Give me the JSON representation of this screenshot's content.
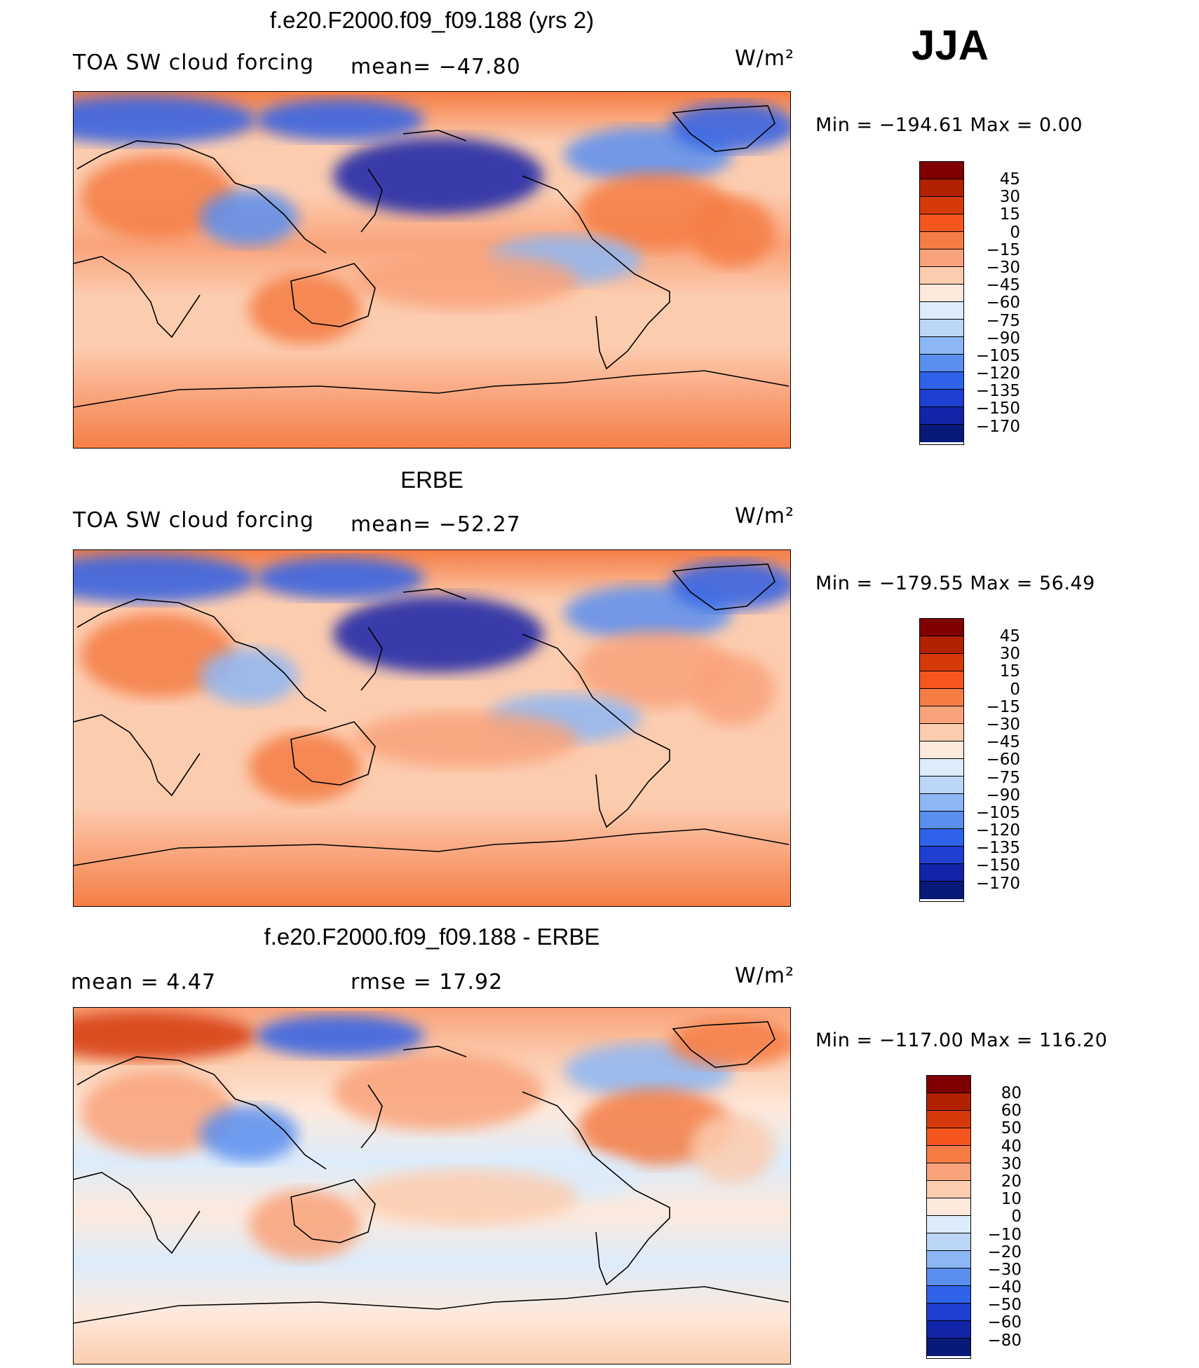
{
  "season": "JJA",
  "panels": [
    {
      "id": "model",
      "title": "f.e20.F2000.f09_f09.188 (yrs 2)",
      "left_label": "TOA SW cloud forcing",
      "mid_label": "mean= −47.80",
      "units": "W/m²",
      "min_max": "Min  =  −194.61  Max  =     0.00",
      "colorbar": {
        "labels": [
          "45",
          "30",
          "15",
          "0",
          "−15",
          "−30",
          "−45",
          "−60",
          "−75",
          "−90",
          "−105",
          "−120",
          "−135",
          "−150",
          "−170"
        ],
        "colors": [
          "#7f0000",
          "#b22200",
          "#d63a0a",
          "#f4561e",
          "#f57d45",
          "#f9a37a",
          "#fcccaf",
          "#fde9dc",
          "#dcecfb",
          "#bcd6f8",
          "#8db7f4",
          "#5a8ff0",
          "#2e62e8",
          "#1f3fd0",
          "#1224a8",
          "#081a78"
        ]
      },
      "map": {
        "base_gradient": [
          "#f57d45",
          "#fcccaf",
          "#fcccaf",
          "#f9a37a",
          "#fcccaf",
          "#fcccaf",
          "#f9a37a",
          "#f57d45"
        ],
        "blobs": [
          {
            "c": "#2e62e8"
          },
          {
            "c": "#1224a8"
          },
          {
            "c": "#5a8ff0"
          },
          {
            "c": "#2e62e8"
          },
          {
            "c": "#f57d45"
          },
          {
            "c": "#f57d45"
          },
          {
            "c": "#f57d45"
          },
          {
            "c": "#5a8ff0"
          },
          {
            "c": "#8db7f4"
          },
          {
            "c": "#f9a37a"
          },
          {
            "c": "#f57d45"
          },
          {
            "c": "#2e62e8"
          }
        ]
      }
    },
    {
      "id": "obs",
      "title": "ERBE",
      "left_label": "TOA SW cloud forcing",
      "mid_label": "mean= −52.27",
      "units": "W/m²",
      "min_max": "Min  =  −179.55  Max  =    56.49",
      "colorbar": {
        "labels": [
          "45",
          "30",
          "15",
          "0",
          "−15",
          "−30",
          "−45",
          "−60",
          "−75",
          "−90",
          "−105",
          "−120",
          "−135",
          "−150",
          "−170"
        ],
        "colors": [
          "#7f0000",
          "#b22200",
          "#d63a0a",
          "#f4561e",
          "#f57d45",
          "#f9a37a",
          "#fcccaf",
          "#fde9dc",
          "#dcecfb",
          "#bcd6f8",
          "#8db7f4",
          "#5a8ff0",
          "#2e62e8",
          "#1f3fd0",
          "#1224a8",
          "#081a78"
        ]
      },
      "map": {
        "base_gradient": [
          "#f57d45",
          "#fcccaf",
          "#fcccaf",
          "#fcccaf",
          "#fcccaf",
          "#fcccaf",
          "#f9a37a",
          "#f57d45"
        ],
        "blobs": [
          {
            "c": "#2e62e8"
          },
          {
            "c": "#1224a8"
          },
          {
            "c": "#5a8ff0"
          },
          {
            "c": "#2e62e8"
          },
          {
            "c": "#f57d45"
          },
          {
            "c": "#f9a37a"
          },
          {
            "c": "#f9a37a"
          },
          {
            "c": "#8db7f4"
          },
          {
            "c": "#8db7f4"
          },
          {
            "c": "#f9a37a"
          },
          {
            "c": "#f57d45"
          },
          {
            "c": "#2e62e8"
          }
        ]
      }
    },
    {
      "id": "diff",
      "title": "f.e20.F2000.f09_f09.188 - ERBE",
      "left_label": "mean  =     4.47",
      "mid_label": "rmse  =    17.92",
      "units": "W/m²",
      "min_max": "Min  =  −117.00  Max  =  116.20",
      "colorbar": {
        "labels": [
          "80",
          "60",
          "50",
          "40",
          "30",
          "20",
          "10",
          "0",
          "−10",
          "−20",
          "−30",
          "−40",
          "−50",
          "−60",
          "−80"
        ],
        "colors": [
          "#7f0000",
          "#b22200",
          "#d63a0a",
          "#f4561e",
          "#f57d45",
          "#f9a37a",
          "#fcccaf",
          "#fde9dc",
          "#dcecfb",
          "#bcd6f8",
          "#8db7f4",
          "#5a8ff0",
          "#2e62e8",
          "#1f3fd0",
          "#1224a8",
          "#081a78"
        ]
      },
      "map": {
        "base_gradient": [
          "#f9a37a",
          "#fcccaf",
          "#fde9dc",
          "#dcecfb",
          "#fde9dc",
          "#dcecfb",
          "#fde9dc",
          "#fcccaf"
        ],
        "blobs": [
          {
            "c": "#d63a0a"
          },
          {
            "c": "#f9a37a"
          },
          {
            "c": "#8db7f4"
          },
          {
            "c": "#f57d45"
          },
          {
            "c": "#f9a37a"
          },
          {
            "c": "#f57d45"
          },
          {
            "c": "#fcccaf"
          },
          {
            "c": "#5a8ff0"
          },
          {
            "c": "#dcecfb"
          },
          {
            "c": "#fcccaf"
          },
          {
            "c": "#f9a37a"
          },
          {
            "c": "#2e62e8"
          }
        ]
      }
    }
  ]
}
